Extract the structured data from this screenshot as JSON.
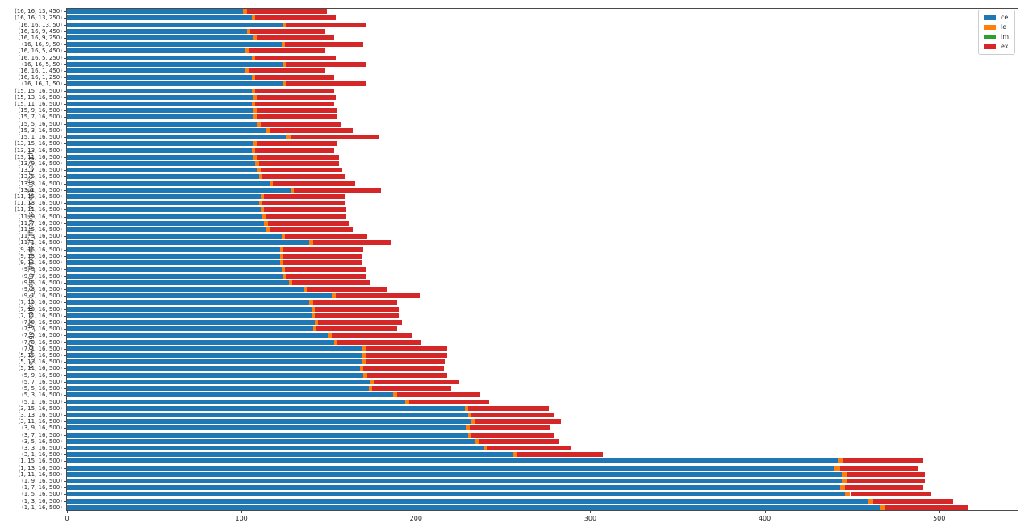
{
  "chart_data": {
    "type": "bar",
    "orientation": "horizontal",
    "stacked": true,
    "title": "",
    "xlabel": "",
    "ylabel": "ce_average_threads,ce_comp_threads,lf_threads,videoBufferLength",
    "xlim": [
      0,
      545
    ],
    "xticks": [
      0,
      100,
      200,
      300,
      400,
      500
    ],
    "grid": false,
    "legend_position": "upper right",
    "colors": {
      "ce": "#1f77b4",
      "le": "#ff7f0e",
      "im": "#2ca02c",
      "ex": "#d62728"
    },
    "categories": [
      "(16, 16, 13, 450)",
      "(16, 16, 13, 250)",
      "(16, 16, 13, 50)",
      "(16, 16, 9, 450)",
      "(16, 16, 9, 250)",
      "(16, 16, 9, 50)",
      "(16, 16, 5, 450)",
      "(16, 16, 5, 250)",
      "(16, 16, 5, 50)",
      "(16, 16, 1, 450)",
      "(16, 16, 1, 250)",
      "(16, 16, 1, 50)",
      "(15, 15, 16, 500)",
      "(15, 13, 16, 500)",
      "(15, 11, 16, 500)",
      "(15, 9, 16, 500)",
      "(15, 7, 16, 500)",
      "(15, 5, 16, 500)",
      "(15, 3, 16, 500)",
      "(15, 1, 16, 500)",
      "(13, 15, 16, 500)",
      "(13, 13, 16, 500)",
      "(13, 11, 16, 500)",
      "(13, 9, 16, 500)",
      "(13, 7, 16, 500)",
      "(13, 5, 16, 500)",
      "(13, 3, 16, 500)",
      "(13, 1, 16, 500)",
      "(11, 15, 16, 500)",
      "(11, 13, 16, 500)",
      "(11, 11, 16, 500)",
      "(11, 9, 16, 500)",
      "(11, 7, 16, 500)",
      "(11, 5, 16, 500)",
      "(11, 3, 16, 500)",
      "(11, 1, 16, 500)",
      "(9, 15, 16, 500)",
      "(9, 13, 16, 500)",
      "(9, 11, 16, 500)",
      "(9, 9, 16, 500)",
      "(9, 7, 16, 500)",
      "(9, 5, 16, 500)",
      "(9, 3, 16, 500)",
      "(9, 1, 16, 500)",
      "(7, 15, 16, 500)",
      "(7, 13, 16, 500)",
      "(7, 11, 16, 500)",
      "(7, 9, 16, 500)",
      "(7, 7, 16, 500)",
      "(7, 5, 16, 500)",
      "(7, 3, 16, 500)",
      "(7, 1, 16, 500)",
      "(5, 15, 16, 500)",
      "(5, 13, 16, 500)",
      "(5, 11, 16, 500)",
      "(5, 9, 16, 500)",
      "(5, 7, 16, 500)",
      "(5, 5, 16, 500)",
      "(5, 3, 16, 500)",
      "(5, 1, 16, 500)",
      "(3, 15, 16, 500)",
      "(3, 13, 16, 500)",
      "(3, 11, 16, 500)",
      "(3, 9, 16, 500)",
      "(3, 7, 16, 500)",
      "(3, 5, 16, 500)",
      "(3, 3, 16, 500)",
      "(3, 1, 16, 500)",
      "(1, 15, 16, 500)",
      "(1, 13, 16, 500)",
      "(1, 11, 16, 500)",
      "(1, 9, 16, 500)",
      "(1, 7, 16, 500)",
      "(1, 5, 16, 500)",
      "(1, 3, 16, 500)",
      "(1, 1, 16, 500)"
    ],
    "series": [
      {
        "name": "ce",
        "values": [
          101,
          106,
          124,
          103,
          107,
          123,
          102,
          106,
          124,
          102,
          106,
          124,
          106,
          107,
          106,
          107,
          107,
          109,
          114,
          126,
          107,
          106,
          107,
          108,
          109,
          110,
          116,
          128,
          111,
          110,
          111,
          112,
          113,
          114,
          123,
          139,
          122,
          122,
          122,
          123,
          124,
          127,
          136,
          152,
          139,
          140,
          140,
          142,
          141,
          150,
          153,
          169,
          169,
          169,
          168,
          170,
          174,
          173,
          187,
          194,
          228,
          230,
          232,
          229,
          230,
          234,
          239,
          256,
          442,
          440,
          444,
          444,
          443,
          446,
          459,
          466
        ]
      },
      {
        "name": "le",
        "values": [
          2,
          2,
          2,
          2,
          2,
          2,
          2,
          2,
          2,
          2,
          2,
          2,
          2,
          2,
          2,
          2,
          2,
          2,
          2,
          2,
          2,
          2,
          2,
          2,
          2,
          2,
          2,
          2,
          2,
          2,
          2,
          2,
          2,
          2,
          2,
          2,
          2,
          2,
          2,
          2,
          2,
          2,
          2,
          2,
          2,
          2,
          2,
          2,
          2,
          2,
          2,
          2,
          2,
          2,
          2,
          2,
          2,
          2,
          2,
          2,
          2,
          2,
          2,
          2,
          2,
          2,
          2,
          2,
          3,
          3,
          3,
          3,
          3,
          3,
          3,
          3
        ]
      },
      {
        "name": "im",
        "values": [
          0,
          0,
          0,
          0,
          0,
          0,
          0,
          0,
          0,
          0,
          0,
          0,
          0,
          0,
          0,
          0,
          0,
          0,
          0,
          0,
          0,
          0,
          0,
          0,
          0,
          0,
          0,
          0,
          0,
          0,
          0,
          0,
          0,
          0,
          0,
          0,
          0,
          0,
          0,
          0,
          0,
          0,
          0,
          0,
          0,
          0,
          0,
          0,
          0,
          0,
          0,
          0,
          0,
          0,
          0,
          0,
          0,
          0,
          0,
          0,
          0,
          0,
          0,
          0,
          0,
          0,
          0,
          0,
          0,
          0,
          0,
          0,
          0,
          0,
          0,
          0
        ]
      },
      {
        "name": "ex",
        "values": [
          46,
          46,
          45,
          43,
          44,
          45,
          44,
          46,
          45,
          44,
          45,
          45,
          45,
          45,
          45,
          46,
          46,
          46,
          48,
          51,
          46,
          45,
          47,
          46,
          47,
          47,
          47,
          50,
          46,
          47,
          47,
          46,
          47,
          48,
          47,
          45,
          46,
          45,
          45,
          46,
          45,
          45,
          45,
          48,
          48,
          48,
          48,
          48,
          46,
          46,
          48,
          47,
          47,
          46,
          46,
          46,
          49,
          45,
          48,
          46,
          46,
          47,
          49,
          46,
          47,
          46,
          48,
          49,
          46,
          45,
          45,
          45,
          45,
          46,
          46,
          48
        ]
      }
    ]
  }
}
